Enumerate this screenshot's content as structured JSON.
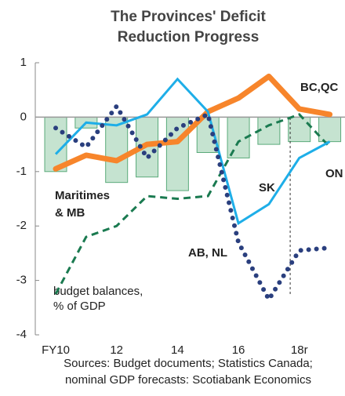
{
  "chart_data": {
    "type": "combo",
    "title_lines": [
      "The Provinces' Deficit",
      "Reduction Progress"
    ],
    "x": [
      2010,
      2011,
      2012,
      2013,
      2014,
      2015,
      2016,
      2017,
      2018,
      2019
    ],
    "series": [
      {
        "name": "Maritimes & MB",
        "style": "bar",
        "color": "#5aaa7a",
        "values": [
          -1.0,
          -0.2,
          -1.2,
          -1.1,
          -1.35,
          -0.65,
          -0.75,
          -0.5,
          -0.45,
          -0.45
        ]
      },
      {
        "name": "ON",
        "style": "dashed",
        "color": "#1a7a50",
        "values": [
          -3.25,
          -2.2,
          -2.0,
          -1.45,
          -1.5,
          -1.45,
          -0.45,
          -0.15,
          0.05,
          -0.55
        ]
      },
      {
        "name": "BC,QC",
        "style": "thick",
        "color": "#f7852b",
        "values": [
          -0.95,
          -0.7,
          -0.8,
          -0.5,
          -0.45,
          0.1,
          0.35,
          0.75,
          0.15,
          0.05
        ]
      },
      {
        "name": "SK",
        "style": "solid",
        "color": "#1eaee8",
        "values": [
          -0.68,
          -0.1,
          -0.15,
          0.05,
          0.7,
          0.1,
          -1.95,
          -1.6,
          -0.75,
          -0.45
        ]
      },
      {
        "name": "AB, NL",
        "style": "dotted",
        "color": "#2a3f7e",
        "values": [
          -0.2,
          -0.55,
          0.2,
          -0.75,
          -0.2,
          0.05,
          -2.3,
          -3.35,
          -2.45,
          -2.4
        ]
      }
    ],
    "xlim": [
      2009.33,
      2019.5
    ],
    "xticks": [
      {
        "value": 2010,
        "label": "FY10"
      },
      {
        "value": 2012,
        "label": "12"
      },
      {
        "value": 2014,
        "label": "14"
      },
      {
        "value": 2016,
        "label": "16"
      },
      {
        "value": 2018,
        "label": "18r"
      }
    ],
    "ylim": [
      -4,
      1
    ],
    "yticks": [
      1,
      0,
      -1,
      -2,
      -3,
      -4
    ],
    "forecast_divider_x": 2017.7,
    "axis_note": [
      "budget balances,",
      "% of GDP"
    ],
    "sources": [
      "Sources: Budget documents; Statistics Canada;",
      "nominal GDP forecasts: Scotiabank Economics"
    ]
  }
}
